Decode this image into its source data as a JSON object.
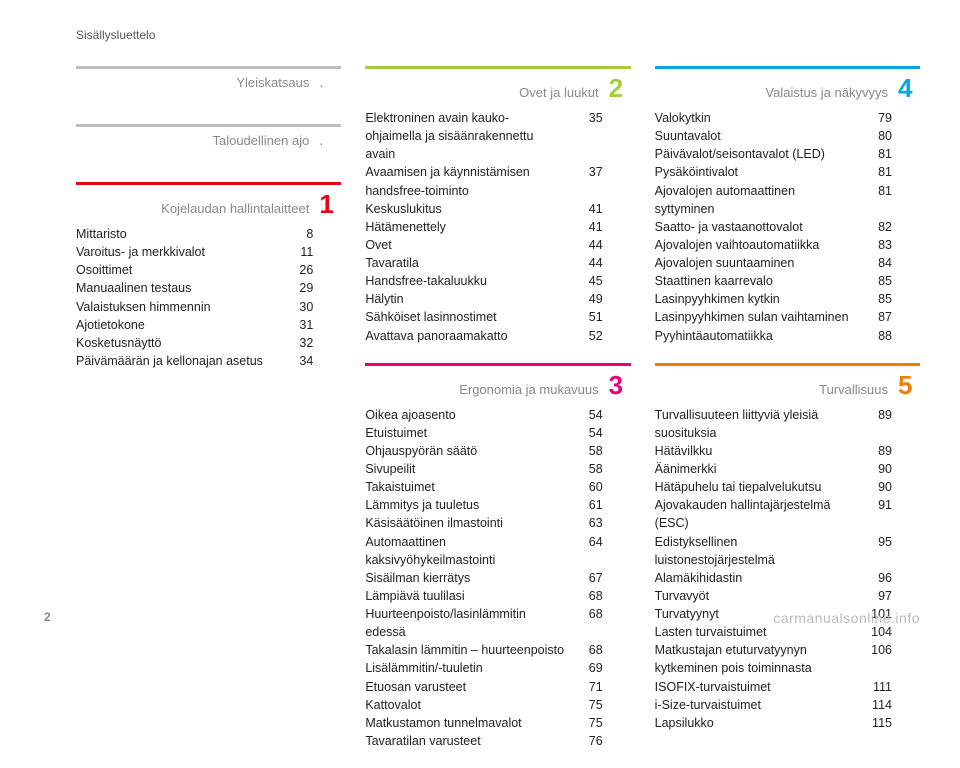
{
  "header": "Sisällysluettelo",
  "page_number": "2",
  "watermark": "carmanualsonline.info",
  "colors": {
    "overview": "#bdbdbd",
    "eco": "#bdbdbd",
    "s1": "#e30613",
    "s2": "#a6ce39",
    "s3": "#e6007e",
    "s4": "#00a9e0",
    "s5": "#f07d00"
  },
  "col1": [
    {
      "title": "Yleiskatsaus",
      "num": ".",
      "bar": "overview",
      "items": []
    },
    {
      "title": "Taloudellinen ajo",
      "num": ".",
      "bar": "eco",
      "items": []
    },
    {
      "title": "Kojelaudan hallintalaitteet",
      "num": "1",
      "bar": "s1",
      "items": [
        {
          "label": "Mittaristo",
          "page": "8"
        },
        {
          "label": "Varoitus- ja merkkivalot",
          "page": "11"
        },
        {
          "label": "Osoittimet",
          "page": "26"
        },
        {
          "label": "Manuaalinen testaus",
          "page": "29"
        },
        {
          "label": "Valaistuksen himmennin",
          "page": "30"
        },
        {
          "label": "Ajotietokone",
          "page": "31"
        },
        {
          "label": "Kosketusnäyttö",
          "page": "32"
        },
        {
          "label": "Päivämäärän ja kellonajan asetus",
          "page": "34"
        }
      ]
    }
  ],
  "col2": [
    {
      "title": "Ovet ja luukut",
      "num": "2",
      "bar": "s2",
      "items": [
        {
          "label": "Elektroninen avain kauko-ohjaimella ja sisäänrakennettu avain",
          "page": "35"
        },
        {
          "label": "Avaamisen ja käynnistämisen handsfree-toiminto",
          "page": "37"
        },
        {
          "label": "Keskuslukitus",
          "page": "41"
        },
        {
          "label": "Hätämenettely",
          "page": "41"
        },
        {
          "label": "Ovet",
          "page": "44"
        },
        {
          "label": "Tavaratila",
          "page": "44"
        },
        {
          "label": "Handsfree-takaluukku",
          "page": "45"
        },
        {
          "label": "Hälytin",
          "page": "49"
        },
        {
          "label": "Sähköiset lasinnostimet",
          "page": "51"
        },
        {
          "label": "Avattava panoraamakatto",
          "page": "52"
        }
      ]
    },
    {
      "title": "Ergonomia ja mukavuus",
      "num": "3",
      "bar": "s3",
      "items": [
        {
          "label": "Oikea ajoasento",
          "page": "54"
        },
        {
          "label": "Etuistuimet",
          "page": "54"
        },
        {
          "label": "Ohjauspyörän säätö",
          "page": "58"
        },
        {
          "label": "Sivupeilit",
          "page": "58"
        },
        {
          "label": "Takaistuimet",
          "page": "60"
        },
        {
          "label": "Lämmitys ja tuuletus",
          "page": "61"
        },
        {
          "label": "Käsisäätöinen ilmastointi",
          "page": "63"
        },
        {
          "label": "Automaattinen kaksivyöhykeilmastointi",
          "page": "64"
        },
        {
          "label": "Sisäilman kierrätys",
          "page": "67"
        },
        {
          "label": "Lämpiävä tuulilasi",
          "page": "68"
        },
        {
          "label": "Huurteenpoisto/lasinlämmitin edessä",
          "page": "68"
        },
        {
          "label": "Takalasin lämmitin – huurteenpoisto",
          "page": "68"
        },
        {
          "label": "Lisälämmitin/-tuuletin",
          "page": "69"
        },
        {
          "label": "Etuosan varusteet",
          "page": "71"
        },
        {
          "label": "Kattovalot",
          "page": "75"
        },
        {
          "label": "Matkustamon tunnelmavalot",
          "page": "75"
        },
        {
          "label": "Tavaratilan varusteet",
          "page": "76"
        }
      ]
    }
  ],
  "col3": [
    {
      "title": "Valaistus ja näkyvyys",
      "num": "4",
      "bar": "s4",
      "items": [
        {
          "label": "Valokytkin",
          "page": "79"
        },
        {
          "label": "Suuntavalot",
          "page": "80"
        },
        {
          "label": "Päivävalot/seisontavalot (LED)",
          "page": "81"
        },
        {
          "label": "Pysäköintivalot",
          "page": "81"
        },
        {
          "label": "Ajovalojen automaattinen syttyminen",
          "page": "81"
        },
        {
          "label": "Saatto- ja vastaanottovalot",
          "page": "82"
        },
        {
          "label": "Ajovalojen vaihtoautomatiikka",
          "page": "83"
        },
        {
          "label": "Ajovalojen suuntaaminen",
          "page": "84"
        },
        {
          "label": "Staattinen kaarrevalo",
          "page": "85"
        },
        {
          "label": "Lasinpyyhkimen kytkin",
          "page": "85"
        },
        {
          "label": "Lasinpyyhkimen sulan vaihtaminen",
          "page": "87"
        },
        {
          "label": "Pyyhintäautomatiikka",
          "page": "88"
        }
      ]
    },
    {
      "title": "Turvallisuus",
      "num": "5",
      "bar": "s5",
      "items": [
        {
          "label": "Turvallisuuteen liittyviä yleisiä suosituksia",
          "page": "89"
        },
        {
          "label": "Hätävilkku",
          "page": "89"
        },
        {
          "label": "Äänimerkki",
          "page": "90"
        },
        {
          "label": "Hätäpuhelu tai tiepalvelukutsu",
          "page": "90"
        },
        {
          "label": "Ajovakauden hallintajärjestelmä (ESC)",
          "page": "91"
        },
        {
          "label": "Edistyksellinen luistonestojärjestelmä",
          "page": "95"
        },
        {
          "label": "Alamäkihidastin",
          "page": "96"
        },
        {
          "label": "Turvavyöt",
          "page": "97"
        },
        {
          "label": "Turvatyynyt",
          "page": "101"
        },
        {
          "label": "Lasten turvaistuimet",
          "page": "104"
        },
        {
          "label": "Matkustajan etuturvatyynyn kytkeminen pois toiminnasta",
          "page": "106"
        },
        {
          "label": "ISOFIX-turvaistuimet",
          "page": "111"
        },
        {
          "label": "i-Size-turvaistuimet",
          "page": "114"
        },
        {
          "label": "Lapsilukko",
          "page": "115"
        }
      ]
    }
  ]
}
